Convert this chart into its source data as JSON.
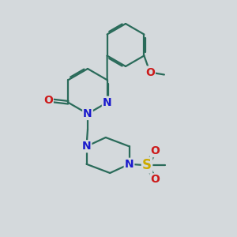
{
  "bg_color": "#d4d9dc",
  "bond_color": "#2a6b5a",
  "N_color": "#1a1acc",
  "O_color": "#cc1a1a",
  "S_color": "#ccaa00",
  "bond_width": 1.6,
  "dbo": 0.06,
  "font_size": 10,
  "fig_size": [
    3.0,
    3.0
  ],
  "dpi": 100,
  "xlim": [
    0,
    10
  ],
  "ylim": [
    0,
    10
  ]
}
